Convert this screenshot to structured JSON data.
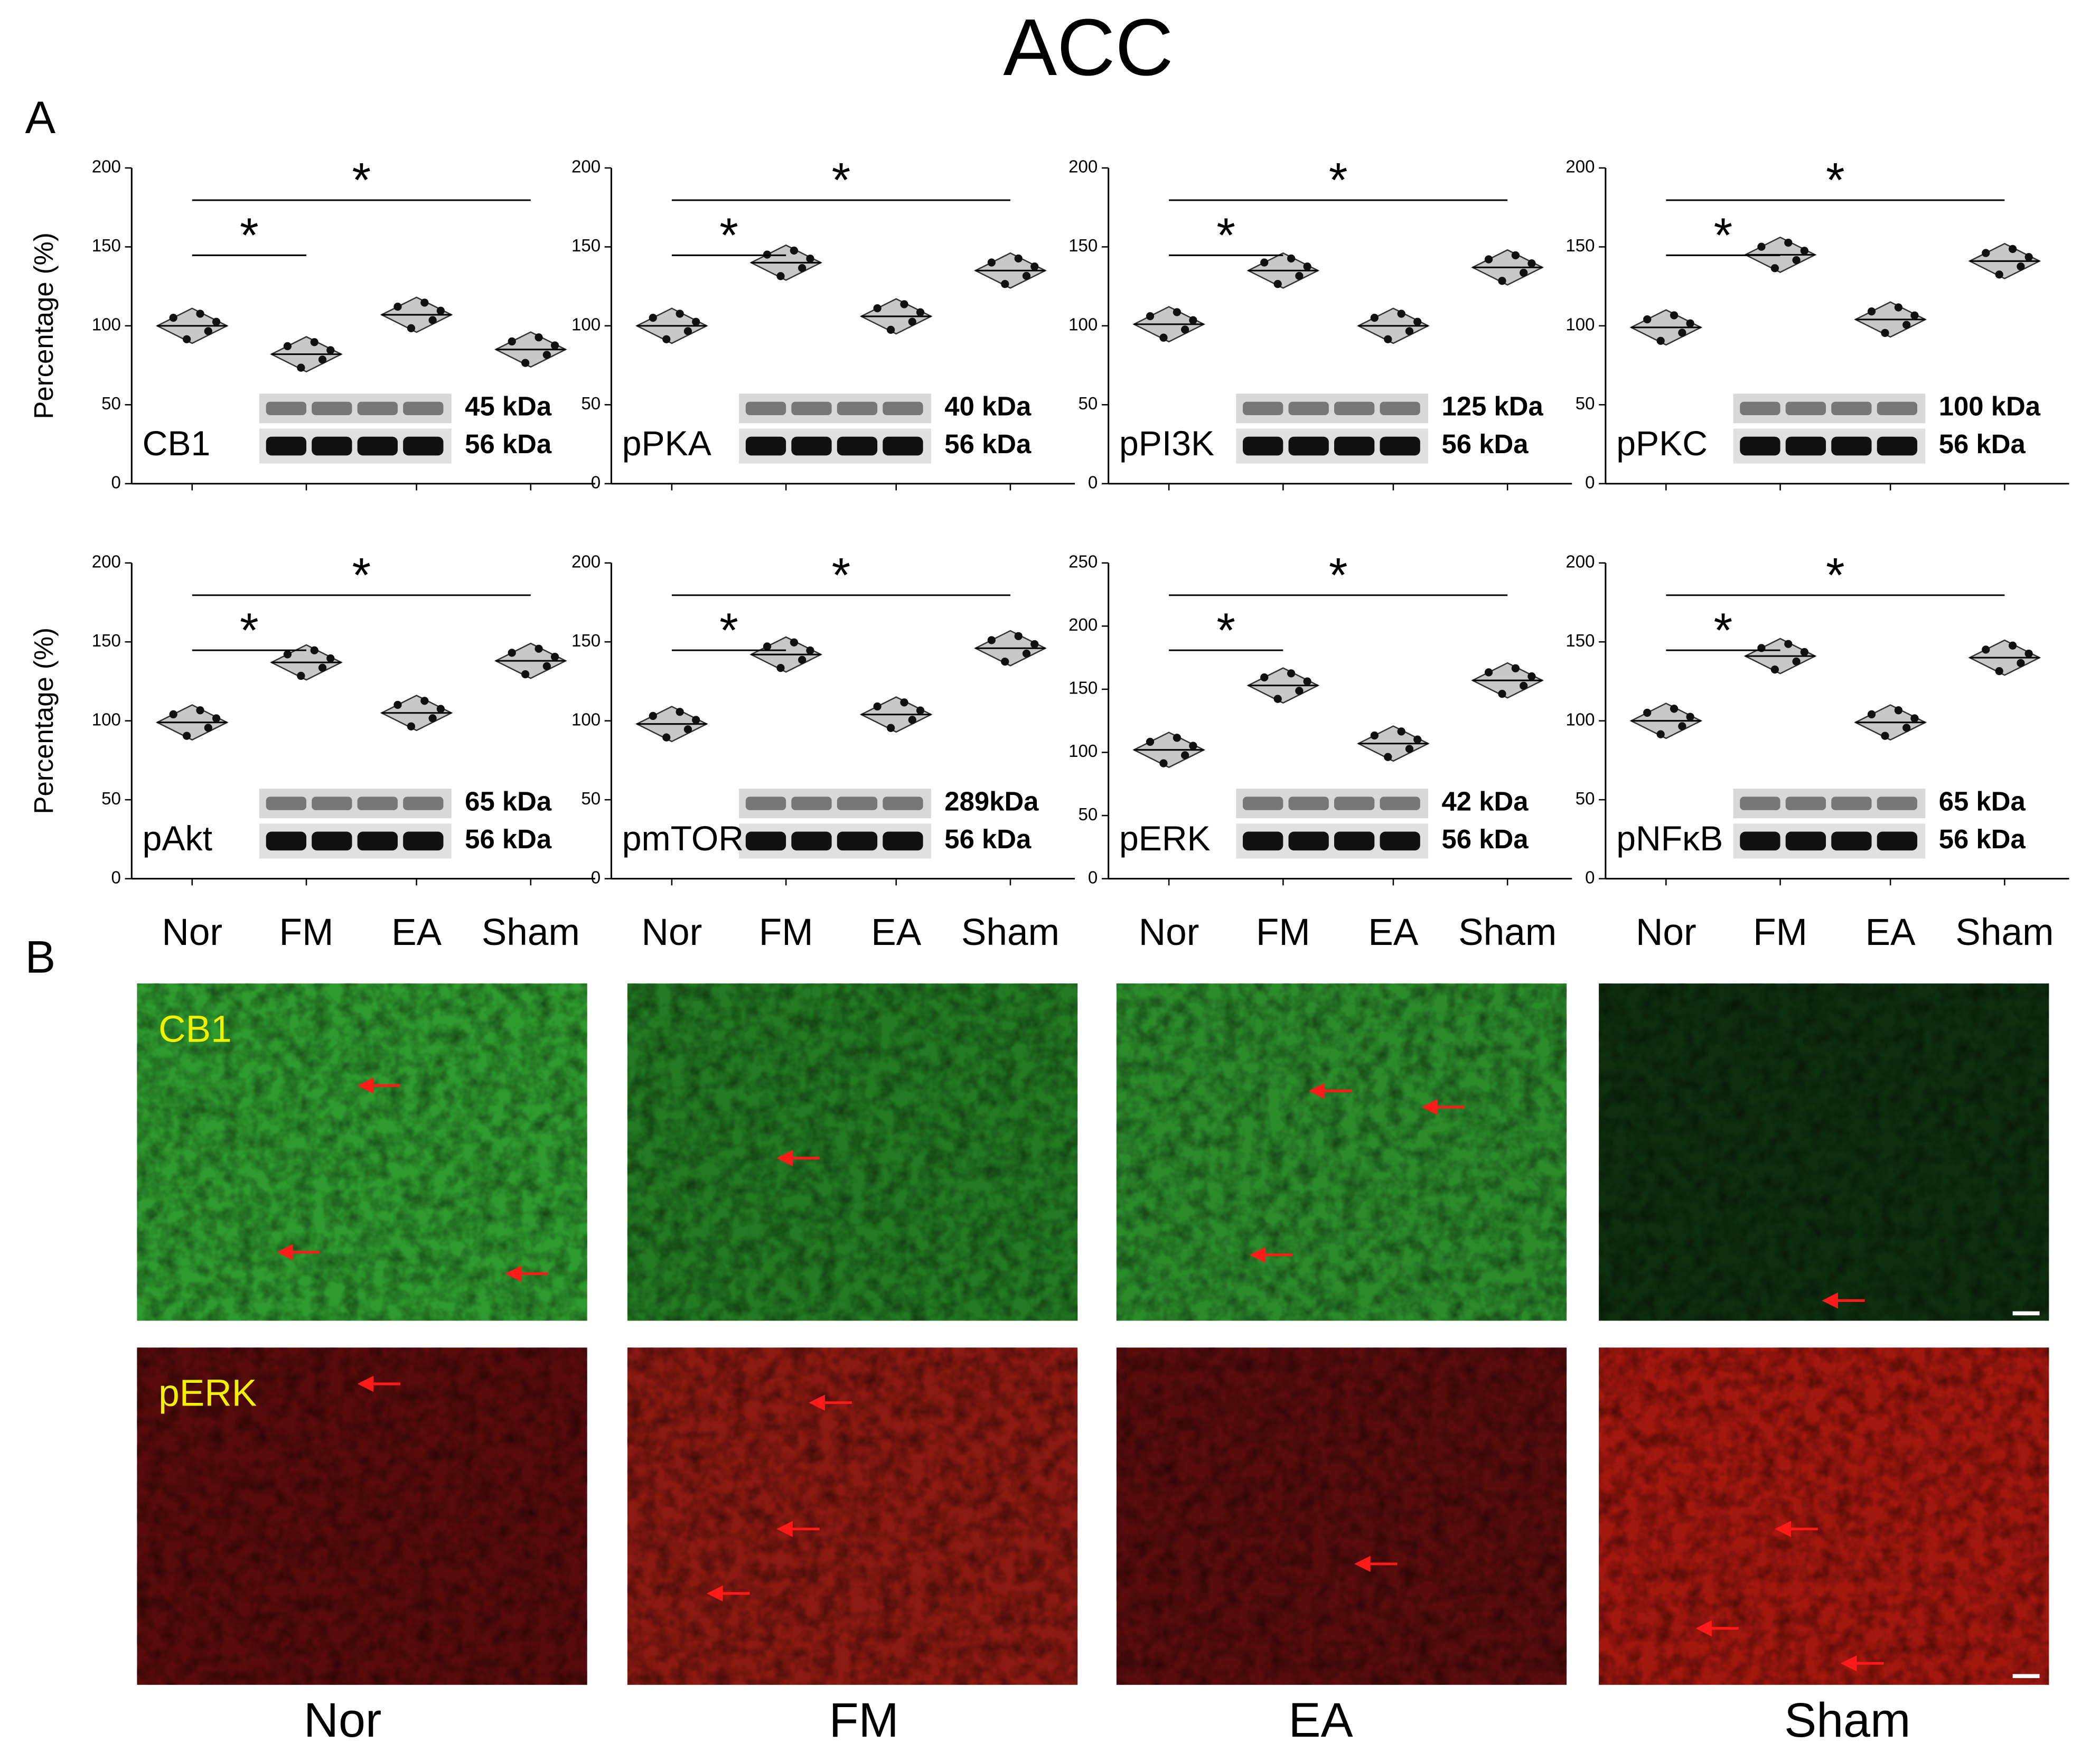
{
  "title": "ACC",
  "panel_labels": [
    "A",
    "B"
  ],
  "chart_data": [
    {
      "type": "violin",
      "title": "CB1",
      "ylabel": "Percentage (%)",
      "bands": [
        "45 kDa",
        "56 kDa"
      ],
      "values": [
        100,
        82,
        107,
        85
      ],
      "ylim": [
        0,
        200
      ],
      "yticks": [
        0,
        50,
        100,
        150,
        200
      ],
      "annotations": [
        "*",
        "*"
      ],
      "color": "#c8c8c8"
    },
    {
      "type": "violin",
      "title": "pPKA",
      "bands": [
        "40 kDa",
        "56 kDa"
      ],
      "values": [
        100,
        140,
        106,
        135
      ],
      "ylim": [
        0,
        200
      ],
      "yticks": [
        0,
        50,
        100,
        150,
        200
      ],
      "annotations": [
        "*",
        "*"
      ],
      "color": "#c8c8c8"
    },
    {
      "type": "violin",
      "title": "pPI3K",
      "bands": [
        "125 kDa",
        "56 kDa"
      ],
      "values": [
        101,
        135,
        100,
        137
      ],
      "ylim": [
        0,
        200
      ],
      "yticks": [
        0,
        50,
        100,
        150,
        200
      ],
      "annotations": [
        "*",
        "*"
      ],
      "color": "#c8c8c8"
    },
    {
      "type": "violin",
      "title": "pPKC",
      "bands": [
        "100 kDa",
        "56 kDa"
      ],
      "values": [
        99,
        145,
        104,
        141
      ],
      "ylim": [
        0,
        200
      ],
      "yticks": [
        0,
        50,
        100,
        150,
        200
      ],
      "annotations": [
        "*",
        "*"
      ],
      "color": "#c8c8c8"
    },
    {
      "type": "violin",
      "title": "pAkt",
      "ylabel": "Percentage (%)",
      "bands": [
        "65 kDa",
        "56 kDa"
      ],
      "categories": [
        "Nor",
        "FM",
        "EA",
        "Sham"
      ],
      "values": [
        99,
        137,
        105,
        138
      ],
      "ylim": [
        0,
        200
      ],
      "yticks": [
        0,
        50,
        100,
        150,
        200
      ],
      "annotations": [
        "*",
        "*"
      ],
      "color": "#c8c8c8"
    },
    {
      "type": "violin",
      "title": "pmTOR",
      "bands": [
        "289kDa",
        "56 kDa"
      ],
      "categories": [
        "Nor",
        "FM",
        "EA",
        "Sham"
      ],
      "values": [
        98,
        142,
        104,
        146
      ],
      "ylim": [
        0,
        200
      ],
      "yticks": [
        0,
        50,
        100,
        150,
        200
      ],
      "annotations": [
        "*",
        "*"
      ],
      "color": "#c8c8c8"
    },
    {
      "type": "violin",
      "title": "pERK",
      "bands": [
        "42 kDa",
        "56 kDa"
      ],
      "categories": [
        "Nor",
        "FM",
        "EA",
        "Sham"
      ],
      "values": [
        102,
        153,
        107,
        157
      ],
      "ylim": [
        0,
        250
      ],
      "yticks": [
        0,
        50,
        100,
        150,
        200,
        250
      ],
      "annotations": [
        "*",
        "*"
      ],
      "color": "#c8c8c8"
    },
    {
      "type": "violin",
      "title": "pNFκB",
      "bands": [
        "65 kDa",
        "56 kDa"
      ],
      "categories": [
        "Nor",
        "FM",
        "EA",
        "Sham"
      ],
      "values": [
        100,
        141,
        99,
        140
      ],
      "ylim": [
        0,
        200
      ],
      "yticks": [
        0,
        50,
        100,
        150,
        200
      ],
      "annotations": [
        "*",
        "*"
      ],
      "color": "#c8c8c8"
    }
  ],
  "images": {
    "rows": [
      "CB1",
      "pERK"
    ],
    "columns": [
      "Nor",
      "FM",
      "EA",
      "Sham"
    ]
  }
}
